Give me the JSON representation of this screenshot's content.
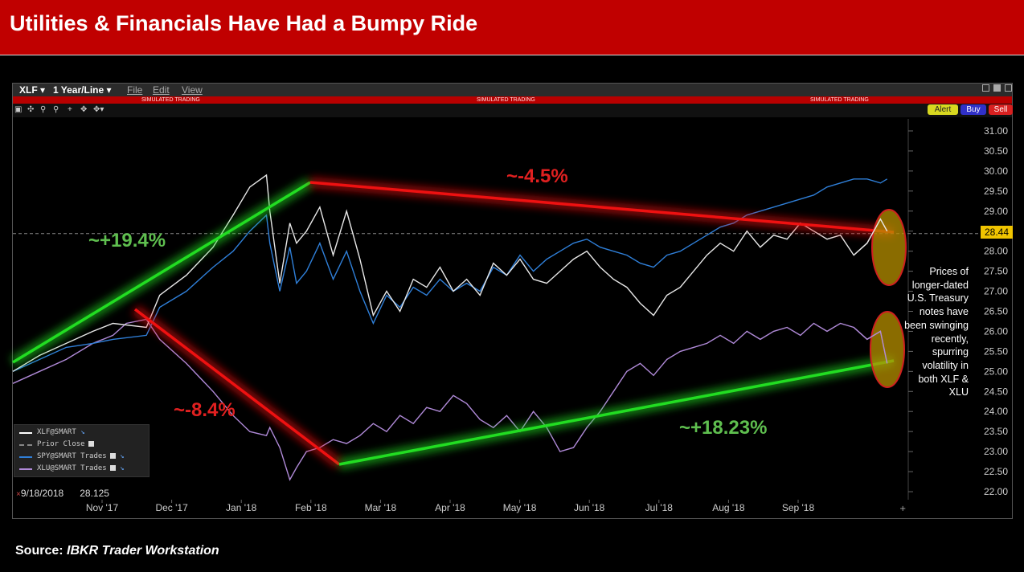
{
  "banner": {
    "title": "Utilities & Financials Have Had a Bumpy Ride"
  },
  "window": {
    "ticker": "XLF ▾",
    "period": "1 Year/Line ▾",
    "menu": [
      "File",
      "Edit",
      "View"
    ],
    "sim_label": "SIMULATED TRADING",
    "actions": {
      "alert": "Alert",
      "buy": "Buy",
      "sell": "Sell"
    },
    "toolbar_icons": [
      "chart-type-icon",
      "crosshair-icon",
      "zoom-in-icon",
      "zoom-out-icon",
      "plus-icon",
      "move-icon",
      "scroll-icon"
    ]
  },
  "legend": {
    "items": [
      {
        "label": "XLF@SMART",
        "color": "#ffffff",
        "style": "solid"
      },
      {
        "label": "Prior Close",
        "color": "#888888",
        "style": "dashed"
      },
      {
        "label": "SPY@SMART Trades",
        "color": "#2f7fd8",
        "style": "solid"
      },
      {
        "label": "XLU@SMART Trades",
        "color": "#b08ad8",
        "style": "solid"
      }
    ]
  },
  "crosshair": {
    "marker": "×",
    "date": "9/18/2018",
    "value": "28.125"
  },
  "last_price": "28.44",
  "annotations": {
    "up1": "~+19.4%",
    "down1": "~-4.5%",
    "down2": "~-8.4%",
    "up2": "~+18.23%"
  },
  "side_note": "Prices of longer-dated U.S. Treasury notes have been swinging recently, spurring volatility in both XLF & XLU",
  "source": {
    "label": "Source:",
    "name": "IBKR Trader Workstation"
  },
  "chart_data": {
    "type": "line",
    "x_tick_labels": [
      "Nov '17",
      "Dec '17",
      "Jan '18",
      "Feb '18",
      "Mar '18",
      "Apr '18",
      "May '18",
      "Jun '18",
      "Jul '18",
      "Aug '18",
      "Sep '18"
    ],
    "y_tick_labels": [
      "22.00",
      "22.50",
      "23.00",
      "23.50",
      "24.00",
      "24.50",
      "25.00",
      "25.50",
      "26.00",
      "26.50",
      "27.00",
      "27.50",
      "28.00",
      "28.50",
      "29.00",
      "29.50",
      "30.00",
      "30.50",
      "31.00"
    ],
    "ylim": [
      21.8,
      31.3
    ],
    "xlim": [
      0,
      1320
    ],
    "prior_close": 28.44,
    "series": [
      {
        "name": "XLF@SMART",
        "color": "#e8e8e8",
        "x": [
          0,
          40,
          80,
          120,
          150,
          200,
          220,
          260,
          300,
          330,
          355,
          380,
          385,
          400,
          415,
          425,
          440,
          460,
          480,
          500,
          520,
          540,
          560,
          580,
          600,
          620,
          640,
          660,
          680,
          700,
          720,
          740,
          760,
          780,
          800,
          820,
          840,
          860,
          880,
          900,
          920,
          940,
          960,
          980,
          1000,
          1020,
          1040,
          1060,
          1080,
          1100,
          1120,
          1140,
          1160,
          1180,
          1200,
          1220,
          1240,
          1260,
          1280,
          1300,
          1310
        ],
        "y": [
          25.0,
          25.4,
          25.7,
          26.0,
          26.2,
          26.1,
          26.9,
          27.4,
          28.1,
          28.9,
          29.6,
          29.9,
          29.0,
          27.2,
          28.7,
          28.2,
          28.5,
          29.1,
          27.9,
          29.0,
          27.8,
          26.4,
          27.0,
          26.5,
          27.3,
          27.1,
          27.6,
          27.0,
          27.3,
          26.9,
          27.7,
          27.4,
          27.8,
          27.3,
          27.2,
          27.5,
          27.8,
          28.0,
          27.6,
          27.3,
          27.1,
          26.7,
          26.4,
          26.9,
          27.1,
          27.5,
          27.9,
          28.2,
          28.0,
          28.5,
          28.1,
          28.4,
          28.3,
          28.7,
          28.5,
          28.3,
          28.4,
          27.9,
          28.2,
          28.8,
          28.5
        ]
      },
      {
        "name": "SPY@SMART Trades",
        "color": "#2f7fd8",
        "x": [
          0,
          40,
          80,
          120,
          150,
          200,
          220,
          260,
          300,
          330,
          355,
          380,
          385,
          400,
          415,
          425,
          440,
          460,
          480,
          500,
          520,
          540,
          560,
          580,
          600,
          620,
          640,
          660,
          680,
          700,
          720,
          740,
          760,
          780,
          800,
          820,
          840,
          860,
          880,
          900,
          920,
          940,
          960,
          980,
          1000,
          1020,
          1040,
          1060,
          1080,
          1100,
          1120,
          1140,
          1160,
          1180,
          1200,
          1220,
          1240,
          1260,
          1280,
          1300,
          1310
        ],
        "y": [
          25.0,
          25.3,
          25.6,
          25.7,
          25.8,
          25.9,
          26.6,
          27.0,
          27.6,
          28.0,
          28.5,
          28.9,
          28.2,
          27.0,
          28.1,
          27.2,
          27.5,
          28.2,
          27.3,
          28.0,
          27.0,
          26.2,
          26.9,
          26.6,
          27.1,
          26.9,
          27.3,
          27.0,
          27.2,
          27.0,
          27.6,
          27.4,
          27.9,
          27.5,
          27.8,
          28.0,
          28.2,
          28.3,
          28.1,
          28.0,
          27.9,
          27.7,
          27.6,
          27.9,
          28.0,
          28.2,
          28.4,
          28.6,
          28.7,
          28.9,
          29.0,
          29.1,
          29.2,
          29.3,
          29.4,
          29.6,
          29.7,
          29.8,
          29.8,
          29.7,
          29.8
        ]
      },
      {
        "name": "XLU@SMART Trades",
        "color": "#b08ad8",
        "x": [
          0,
          40,
          80,
          120,
          150,
          170,
          200,
          220,
          260,
          300,
          330,
          355,
          380,
          385,
          400,
          415,
          425,
          440,
          460,
          480,
          500,
          520,
          540,
          560,
          580,
          600,
          620,
          640,
          660,
          680,
          700,
          720,
          740,
          760,
          780,
          800,
          820,
          840,
          860,
          880,
          900,
          920,
          940,
          960,
          980,
          1000,
          1020,
          1040,
          1060,
          1080,
          1100,
          1120,
          1140,
          1160,
          1180,
          1200,
          1220,
          1240,
          1260,
          1280,
          1300,
          1310
        ],
        "y": [
          24.7,
          25.0,
          25.3,
          25.7,
          25.9,
          26.2,
          26.3,
          25.8,
          25.2,
          24.5,
          23.9,
          23.5,
          23.4,
          23.6,
          23.1,
          22.3,
          22.6,
          23.0,
          23.1,
          23.3,
          23.2,
          23.4,
          23.7,
          23.5,
          23.9,
          23.7,
          24.1,
          24.0,
          24.4,
          24.2,
          23.8,
          23.6,
          23.9,
          23.5,
          24.0,
          23.6,
          23.0,
          23.1,
          23.6,
          24.0,
          24.5,
          25.0,
          25.2,
          24.9,
          25.3,
          25.5,
          25.6,
          25.7,
          25.9,
          25.7,
          26.0,
          25.8,
          26.0,
          26.1,
          25.9,
          26.2,
          26.0,
          26.2,
          26.1,
          25.8,
          26.0,
          25.2
        ]
      }
    ]
  }
}
